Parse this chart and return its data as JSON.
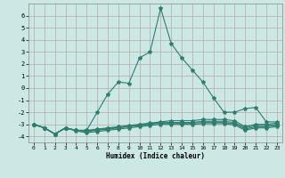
{
  "x": [
    0,
    1,
    2,
    3,
    4,
    5,
    6,
    7,
    8,
    9,
    10,
    11,
    12,
    13,
    14,
    15,
    16,
    17,
    18,
    19,
    20,
    21,
    22,
    23
  ],
  "line_main": [
    -3.0,
    -3.3,
    -3.8,
    -3.3,
    -3.5,
    -3.5,
    -2.0,
    -0.5,
    0.5,
    0.4,
    2.5,
    3.0,
    6.6,
    3.7,
    2.5,
    1.5,
    0.5,
    -0.8,
    -2.0,
    -2.0,
    -1.7,
    -1.6,
    -2.8,
    -2.8
  ],
  "line_flat1": [
    -3.0,
    -3.3,
    -3.8,
    -3.3,
    -3.5,
    -3.5,
    -3.4,
    -3.3,
    -3.2,
    -3.1,
    -3.0,
    -2.9,
    -2.8,
    -2.7,
    -2.7,
    -2.7,
    -2.6,
    -2.6,
    -2.6,
    -2.7,
    -3.2,
    -3.0,
    -3.0,
    -2.9
  ],
  "line_flat2": [
    -3.0,
    -3.3,
    -3.8,
    -3.3,
    -3.5,
    -3.55,
    -3.45,
    -3.35,
    -3.25,
    -3.15,
    -3.05,
    -2.95,
    -2.85,
    -2.85,
    -2.85,
    -2.85,
    -2.75,
    -2.75,
    -2.75,
    -2.85,
    -3.3,
    -3.1,
    -3.1,
    -3.0
  ],
  "line_flat3": [
    -3.0,
    -3.3,
    -3.8,
    -3.3,
    -3.5,
    -3.6,
    -3.5,
    -3.4,
    -3.3,
    -3.2,
    -3.1,
    -3.0,
    -2.9,
    -2.9,
    -2.9,
    -2.9,
    -2.85,
    -2.85,
    -2.85,
    -2.95,
    -3.4,
    -3.2,
    -3.2,
    -3.1
  ],
  "line_flat4": [
    -3.0,
    -3.3,
    -3.8,
    -3.3,
    -3.55,
    -3.7,
    -3.6,
    -3.5,
    -3.4,
    -3.3,
    -3.2,
    -3.1,
    -3.0,
    -3.0,
    -3.0,
    -3.0,
    -2.95,
    -2.95,
    -2.95,
    -3.05,
    -3.5,
    -3.3,
    -3.3,
    -3.2
  ],
  "color": "#2e7d6e",
  "bg_color": "#cce8e4",
  "grid_color": "#b8a8a8",
  "xlabel": "Humidex (Indice chaleur)",
  "ylim": [
    -4.5,
    7.0
  ],
  "xlim": [
    -0.5,
    23.5
  ],
  "yticks": [
    -4,
    -3,
    -2,
    -1,
    0,
    1,
    2,
    3,
    4,
    5,
    6
  ],
  "xticks": [
    0,
    1,
    2,
    3,
    4,
    5,
    6,
    7,
    8,
    9,
    10,
    11,
    12,
    13,
    14,
    15,
    16,
    17,
    18,
    19,
    20,
    21,
    22,
    23
  ]
}
